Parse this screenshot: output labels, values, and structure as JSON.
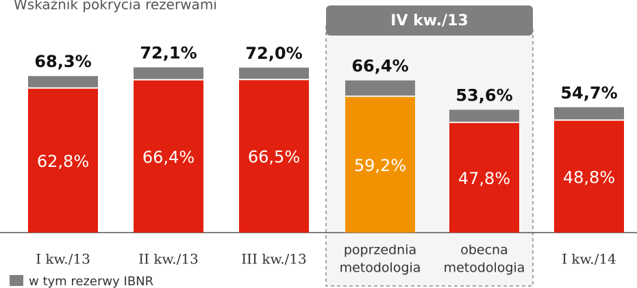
{
  "chart_data": {
    "type": "stacked_bar",
    "title": "Wskaźnik pokrycia rezerwami",
    "group_label": "IV kw./13",
    "group_categories": [
      3,
      4
    ],
    "categories": [
      "I kw./13",
      "II kw./13",
      "III kw./13",
      [
        "poprzednia",
        "metodologia"
      ],
      [
        "obecna",
        "metodologia"
      ],
      "I kw./14"
    ],
    "series": [
      {
        "color": "#e2200f",
        "colors": [
          "#e2200f",
          "#e2200f",
          "#e2200f",
          "#f39200",
          "#e2200f",
          "#e2200f"
        ],
        "values": [
          62.8,
          66.4,
          66.5,
          59.2,
          47.8,
          48.8
        ],
        "value_labels": [
          "62,8%",
          "66,4%",
          "66,5%",
          "59,2%",
          "47,8%",
          "48,8%"
        ]
      },
      {
        "name": "w tym rezerwy IBNR",
        "color": "#7f7f7f",
        "values": [
          5.5,
          5.7,
          5.5,
          7.2,
          5.8,
          5.9
        ]
      }
    ],
    "totals": [
      68.3,
      72.1,
      72.0,
      66.4,
      53.6,
      54.7
    ],
    "total_labels": [
      "68,3%",
      "72,1%",
      "72,0%",
      "66,4%",
      "53,6%",
      "54,7%"
    ]
  }
}
